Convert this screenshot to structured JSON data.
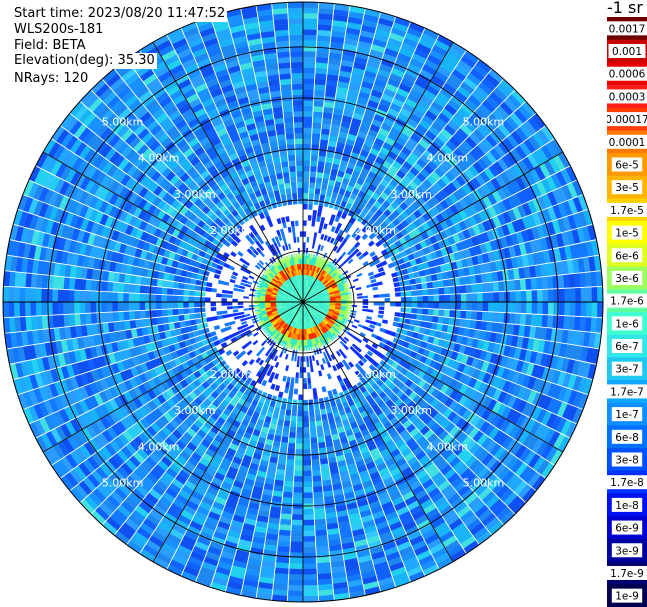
{
  "chart_data": {
    "type": "heatmap",
    "title": "",
    "plot": "ppi",
    "rays": 120,
    "range_rings_km": [
      1,
      2,
      3,
      4,
      5
    ],
    "range_labels": [
      "2.00km",
      "3.00km",
      "4.00km",
      "5.00km"
    ],
    "ring_label_text": {
      "1": "1.00km",
      "2": "2.00km",
      "3": "3.00km",
      "4": "4.00km",
      "5": "5.00km"
    },
    "max_range_km": 5.88,
    "info": {
      "start_time": "Start time: 2023/08/20 11:47:52",
      "instrument": "WLS200s-181",
      "field": "Field: BETA",
      "elevation": "Elevation(deg): 35.30",
      "nrays": "NRays: 120"
    },
    "colorbar": {
      "title": "-1 sr",
      "labels": [
        "0.0017",
        "0.001",
        "0.0006",
        "0.0003",
        "0.00017",
        "0.0001",
        "6e-5",
        "3e-5",
        "1.7e-5",
        "1e-5",
        "6e-6",
        "3e-6",
        "1.7e-6",
        "1e-6",
        "6e-7",
        "3e-7",
        "1.7e-7",
        "1e-7",
        "6e-8",
        "3e-8",
        "1.7e-8",
        "1e-8",
        "6e-9",
        "3e-9",
        "1.7e-9",
        "1e-9"
      ],
      "colors": [
        "#6e0000",
        "#c80000",
        "#e60000",
        "#ff1e1e",
        "#ff3c00",
        "#ff7800",
        "#ff9900",
        "#ffb400",
        "#ffd200",
        "#ffff00",
        "#e0ff20",
        "#a0ff60",
        "#60ffa0",
        "#40ffd0",
        "#30e8e8",
        "#20c8f0",
        "#10a8ff",
        "#1090ff",
        "#0070ff",
        "#0050ff",
        "#0030ff",
        "#0010f0",
        "#0000d0",
        "#0000a0",
        "#000070",
        "#000050"
      ]
    }
  }
}
